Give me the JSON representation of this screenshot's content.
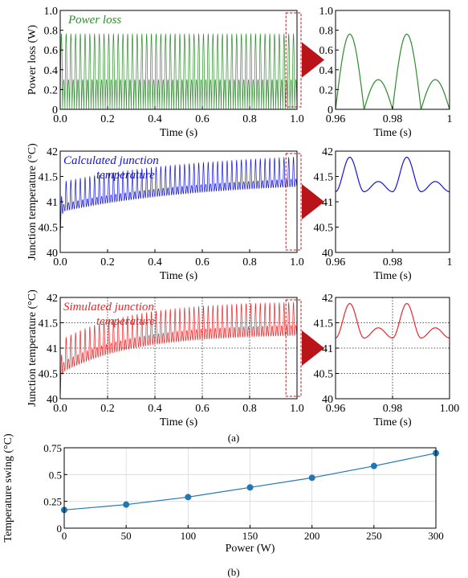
{
  "figure": {
    "label_a": "(a)",
    "label_b": "(b)"
  },
  "chart_data": [
    {
      "id": "power_main",
      "type": "line",
      "annotation": "Power loss",
      "xlabel": "Time (s)",
      "ylabel": "Power loss (W)",
      "xlim": [
        0,
        1
      ],
      "ylim": [
        0,
        1
      ],
      "xticks": [
        "0.0",
        "0.2",
        "0.4",
        "0.6",
        "0.8",
        "1.0"
      ],
      "yticks": [
        "0",
        "0.2",
        "0.4",
        "0.6",
        "0.8",
        "1.0"
      ],
      "grid": false,
      "color": "#2e8b2e",
      "signal": {
        "kind": "rectified_sine",
        "period_s": 0.02,
        "peak_high": 0.76,
        "peak_low": 0.3
      },
      "zoom_box": [
        0.96,
        1.0
      ]
    },
    {
      "id": "power_zoom",
      "type": "line",
      "xlabel": "Time (s)",
      "ylabel": "",
      "xlim": [
        0.96,
        1.0
      ],
      "ylim": [
        0,
        1
      ],
      "xticks": [
        "0.96",
        "0.98",
        "1"
      ],
      "yticks": [
        "0",
        "0.2",
        "0.4",
        "0.6",
        "0.8",
        "1.0"
      ],
      "grid": false,
      "color": "#2e8b2e",
      "signal": {
        "kind": "rectified_sine",
        "period_s": 0.02,
        "peak_high": 0.76,
        "peak_low": 0.3
      }
    },
    {
      "id": "calc_main",
      "type": "line",
      "annotation_line1": "Calculated junction",
      "annotation_line2": "temperature",
      "xlabel": "Time (s)",
      "ylabel": "Junction temperature (°C)",
      "xlim": [
        0,
        1
      ],
      "ylim": [
        40,
        42
      ],
      "xticks": [
        "0.0",
        "0.2",
        "0.4",
        "0.6",
        "0.8",
        "1.0"
      ],
      "yticks": [
        "40",
        "40.5",
        "41",
        "41.5",
        "42"
      ],
      "grid": false,
      "color": "#1414d8",
      "signal": {
        "kind": "ripple",
        "start": 40.3,
        "base_start": 40.8,
        "base_end": 41.3,
        "tau_s": 0.6,
        "ripple_high": 0.58,
        "ripple_low": 0.15
      },
      "zoom_box": [
        0.96,
        1.0
      ]
    },
    {
      "id": "calc_zoom",
      "type": "line",
      "xlabel": "Time (s)",
      "ylabel": "",
      "xlim": [
        0.96,
        1.0
      ],
      "ylim": [
        40,
        42
      ],
      "xticks": [
        "0.96",
        "0.98",
        "1"
      ],
      "yticks": [
        "40",
        "40.5",
        "41",
        "41.5",
        "42"
      ],
      "grid": false,
      "color": "#1414d8",
      "signal": {
        "kind": "ripple_steady",
        "base": 41.2,
        "ripple_high": 0.68,
        "ripple_low": 0.2
      }
    },
    {
      "id": "sim_main",
      "type": "line",
      "annotation_line1": "Simulated junction",
      "annotation_line2": "temperature",
      "xlabel": "Time (s)",
      "ylabel": "Junction temperature (°C)",
      "xlim": [
        0,
        1
      ],
      "ylim": [
        40,
        42
      ],
      "xticks": [
        "0.0",
        "0.2",
        "0.4",
        "0.6",
        "0.8",
        "1.0"
      ],
      "yticks": [
        "40",
        "40.5",
        "41",
        "41.5",
        "42"
      ],
      "grid": true,
      "color": "#e8282a",
      "signal": {
        "kind": "ripple",
        "start": 40.0,
        "base_start": 40.5,
        "base_end": 41.25,
        "tau_s": 0.3,
        "ripple_high": 0.65,
        "ripple_low": 0.2
      },
      "zoom_box": [
        0.96,
        1.0
      ]
    },
    {
      "id": "sim_zoom",
      "type": "line",
      "xlabel": "Time (s)",
      "ylabel": "",
      "xlim": [
        0.96,
        1.0
      ],
      "ylim": [
        40,
        42
      ],
      "xticks": [
        "0.96",
        "0.98",
        "1.00"
      ],
      "yticks": [
        "40",
        "40.5",
        "41",
        "41.5",
        "42"
      ],
      "grid": true,
      "color": "#e8282a",
      "signal": {
        "kind": "ripple_steady",
        "base": 41.2,
        "ripple_high": 0.68,
        "ripple_low": 0.2
      }
    },
    {
      "id": "swing",
      "type": "line",
      "xlabel": "Power (W)",
      "ylabel": "Temperature swing (°C)",
      "x": [
        0,
        50,
        100,
        150,
        200,
        250,
        300
      ],
      "values": [
        0.17,
        0.22,
        0.29,
        0.38,
        0.47,
        0.58,
        0.7
      ],
      "xlim": [
        0,
        300
      ],
      "ylim": [
        0,
        0.75
      ],
      "xticks": [
        "0",
        "50",
        "100",
        "150",
        "200",
        "250",
        "300"
      ],
      "yticks": [
        "0",
        "0.25",
        "0.5",
        "0.75"
      ],
      "grid": true,
      "color": "#1f77b4",
      "markers": true
    }
  ]
}
